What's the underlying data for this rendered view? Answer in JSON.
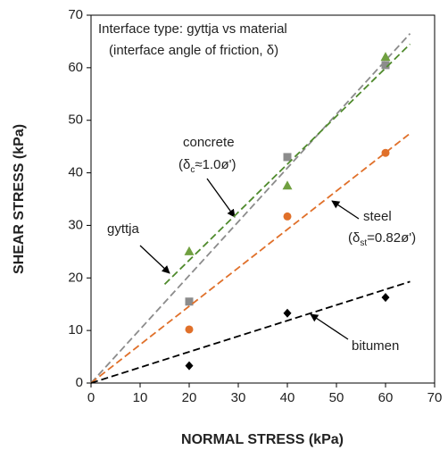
{
  "chart_data": {
    "type": "scatter",
    "xlabel": "NORMAL STRESS (kPa)",
    "ylabel": "SHEAR STRESS (kPa)",
    "xlim": [
      0,
      70
    ],
    "ylim": [
      0,
      70
    ],
    "xticks": [
      0,
      10,
      20,
      30,
      40,
      50,
      60,
      70
    ],
    "yticks": [
      0,
      10,
      20,
      30,
      40,
      50,
      60,
      70
    ],
    "grid": false,
    "annotations": [
      "Interface type: gyttja vs material",
      "(interface angle of friction, δ)"
    ],
    "series": [
      {
        "name": "gyttja",
        "color": "#8c8c8c",
        "marker": "square",
        "x": [
          20,
          40,
          60
        ],
        "values": [
          15.5,
          43,
          60.5
        ],
        "trend": {
          "x": [
            0,
            65
          ],
          "y": [
            0,
            66.5
          ]
        }
      },
      {
        "name": "concrete",
        "color": "#70a040",
        "marker": "triangle",
        "note": [
          "(δ",
          "c",
          "≈1.0ø')"
        ],
        "x": [
          20,
          40,
          60
        ],
        "values": [
          25,
          37.5,
          62
        ],
        "trend": {
          "x": [
            15,
            65
          ],
          "y": [
            18.8,
            64.5
          ]
        }
      },
      {
        "name": "steel",
        "color": "#e0702a",
        "marker": "circle",
        "note": [
          "(δ",
          "st",
          "=0.82ø')"
        ],
        "x": [
          20,
          40,
          60
        ],
        "values": [
          10.2,
          31.7,
          43.8
        ],
        "trend": {
          "x": [
            0,
            65
          ],
          "y": [
            0,
            47.5
          ]
        }
      },
      {
        "name": "bitumen",
        "color": "#000000",
        "marker": "diamond",
        "x": [
          20,
          40,
          60
        ],
        "values": [
          3.3,
          13.3,
          16.3
        ],
        "trend": {
          "x": [
            0,
            65
          ],
          "y": [
            0,
            19.3
          ]
        }
      }
    ]
  }
}
